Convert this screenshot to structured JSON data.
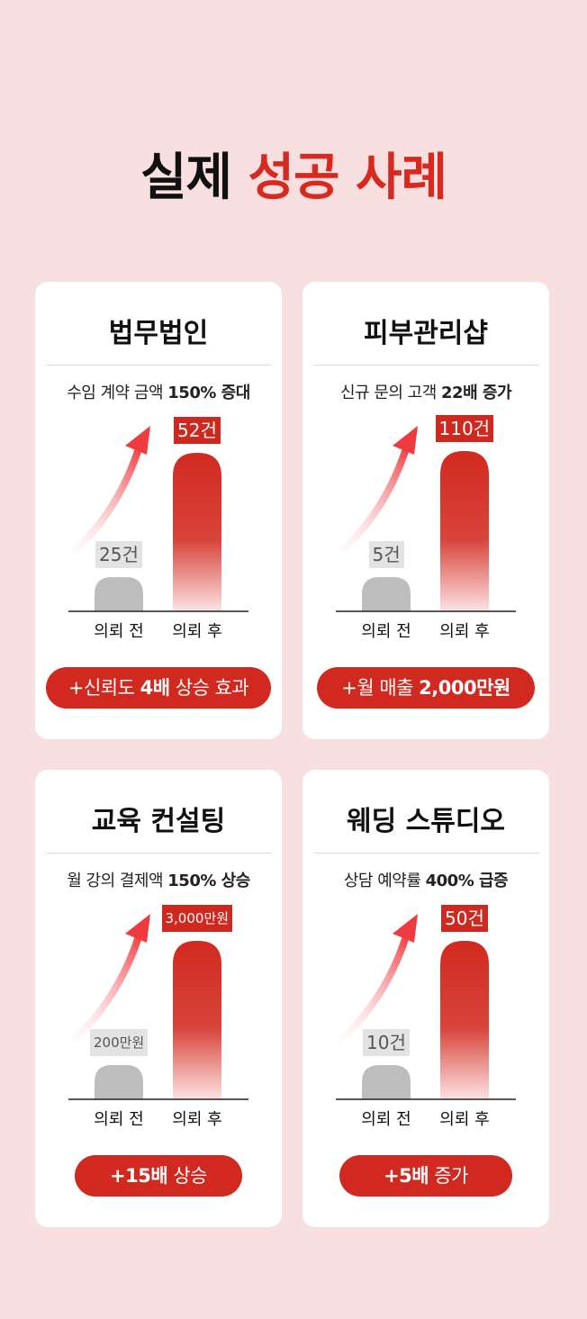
{
  "header": {
    "title_part1": "실제",
    "title_part2": "성공 사례"
  },
  "colors": {
    "accent": "#d8291f",
    "bar_before": "#bdbdbd",
    "bar_after": "#d22a20",
    "background": "#f9e0e0"
  },
  "cards": [
    {
      "title": "법무법인",
      "subtitle_prefix": "수임 계약 금액 ",
      "subtitle_emph": "150% 증대",
      "badge_prefix": "+신뢰도 ",
      "badge_emph": "4배",
      "badge_suffix": " 상승 효과"
    },
    {
      "title": "피부관리샵",
      "subtitle_prefix": "신규 문의 고객 ",
      "subtitle_emph": "22배 증가",
      "badge_prefix": "+월 매출 ",
      "badge_emph": "2,000만원",
      "badge_suffix": ""
    },
    {
      "title": "교육 컨설팅",
      "subtitle_prefix": "월 강의 결제액 ",
      "subtitle_emph": "150% 상승",
      "badge_prefix": "",
      "badge_emph": "+15배",
      "badge_suffix": " 상승"
    },
    {
      "title": "웨딩 스튜디오",
      "subtitle_prefix": "상담 예약률 ",
      "subtitle_emph": "400% 급증",
      "badge_prefix": "",
      "badge_emph": "+5배",
      "badge_suffix": " 증가"
    }
  ],
  "chart_data": [
    {
      "type": "bar",
      "categories": [
        "의뢰 전",
        "의뢰 후"
      ],
      "values": [
        25,
        52
      ],
      "value_labels": [
        "25건",
        "52건"
      ]
    },
    {
      "type": "bar",
      "categories": [
        "의뢰 전",
        "의뢰 후"
      ],
      "values": [
        5,
        110
      ],
      "value_labels": [
        "5건",
        "110건"
      ]
    },
    {
      "type": "bar",
      "categories": [
        "의뢰 전",
        "의뢰 후"
      ],
      "values": [
        200,
        3000
      ],
      "value_labels": [
        "200만원",
        "3,000만원"
      ]
    },
    {
      "type": "bar",
      "categories": [
        "의뢰 전",
        "의뢰 후"
      ],
      "values": [
        10,
        50
      ],
      "value_labels": [
        "10건",
        "50건"
      ]
    }
  ]
}
